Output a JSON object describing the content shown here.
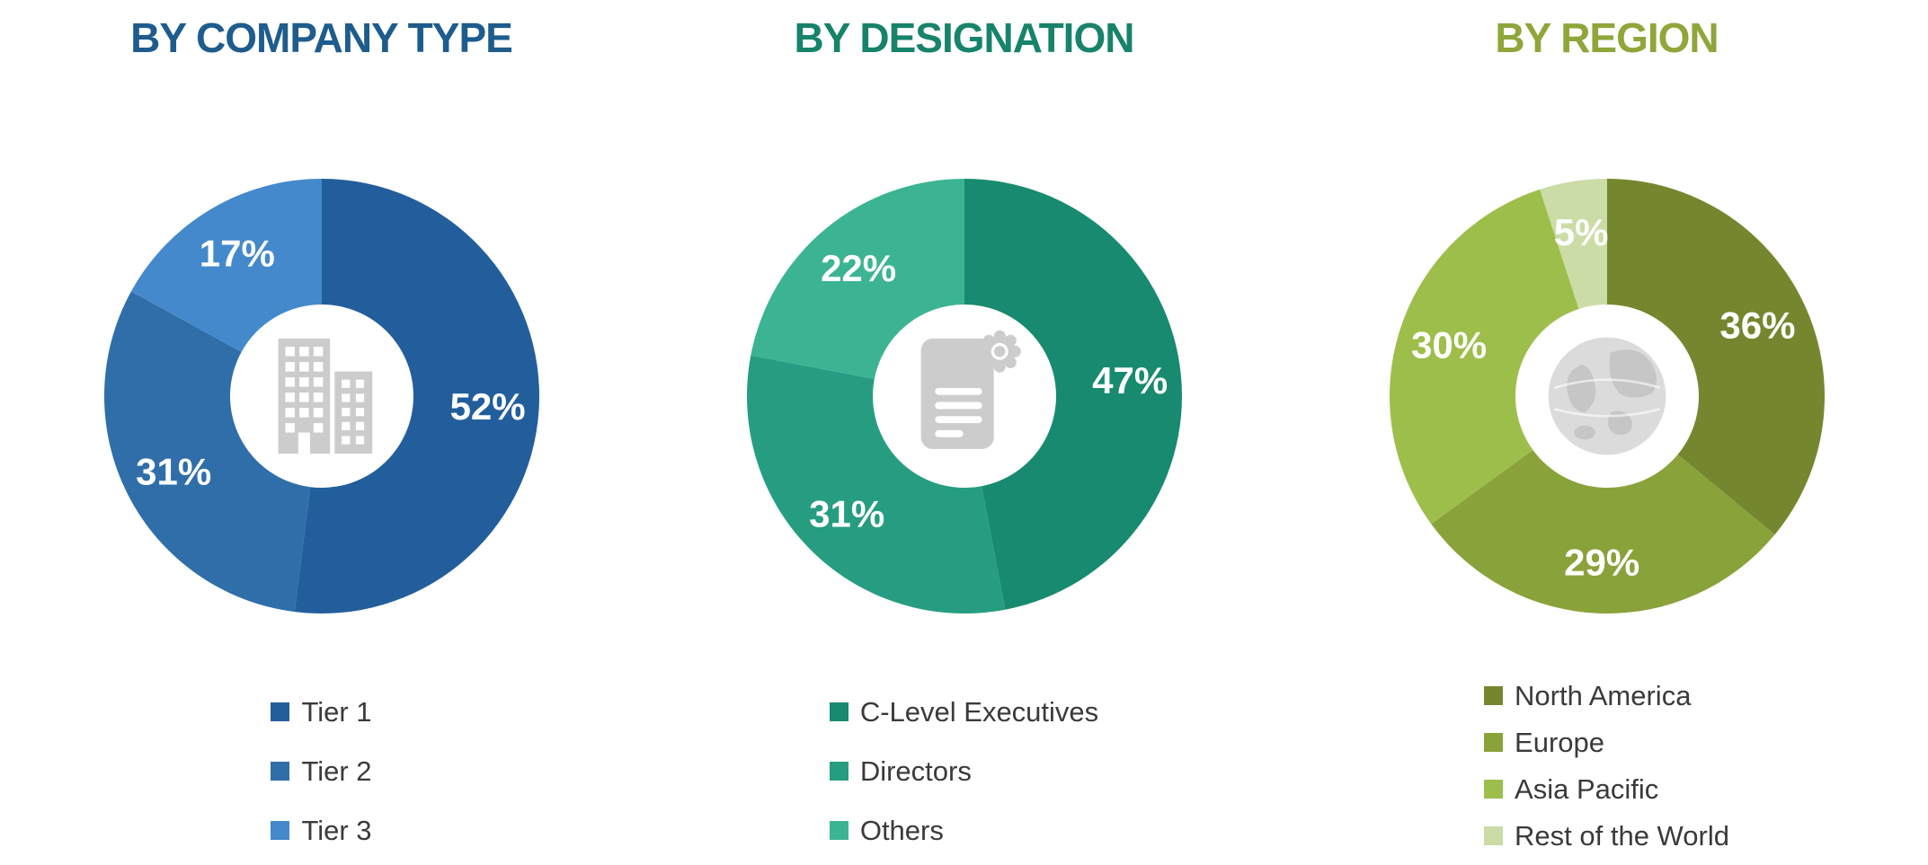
{
  "page": {
    "background_color": "#ffffff",
    "data_label_color": "#ffffff",
    "legend_text_color": "#3a3a3a",
    "icon_color": "#cccccc"
  },
  "chart_data": [
    {
      "type": "donut",
      "title": "BY COMPANY TYPE",
      "title_color": "#1e5c8d",
      "center_icon": "building-icon",
      "categories": [
        "Tier 1",
        "Tier 2",
        "Tier 3"
      ],
      "values": [
        52,
        31,
        17
      ],
      "data_labels": [
        "52%",
        "31%",
        "17%"
      ],
      "colors": [
        "#235e9c",
        "#2f6ea9",
        "#4489cb"
      ],
      "start_angle_deg": 0,
      "direction": "clockwise",
      "legend_position": "bottom"
    },
    {
      "type": "donut",
      "title": "BY DESIGNATION",
      "title_color": "#17836a",
      "center_icon": "certificate-document-icon",
      "categories": [
        "C-Level Executives",
        "Directors",
        "Others"
      ],
      "values": [
        47,
        31,
        22
      ],
      "data_labels": [
        "47%",
        "31%",
        "22%"
      ],
      "colors": [
        "#178a6f",
        "#269d81",
        "#3cb493"
      ],
      "start_angle_deg": 0,
      "direction": "clockwise",
      "legend_position": "bottom"
    },
    {
      "type": "donut",
      "title": "BY REGION",
      "title_color": "#8ea63a",
      "center_icon": "globe-icon",
      "categories": [
        "North America",
        "Europe",
        "Asia Pacific",
        "Rest of the World"
      ],
      "values": [
        36,
        29,
        30,
        5
      ],
      "data_labels": [
        "36%",
        "29%",
        "30%",
        "5%"
      ],
      "colors": [
        "#75872e",
        "#8aa23a",
        "#9ebe4b",
        "#cbdca6"
      ],
      "start_angle_deg": 0,
      "direction": "clockwise",
      "legend_position": "bottom"
    }
  ]
}
